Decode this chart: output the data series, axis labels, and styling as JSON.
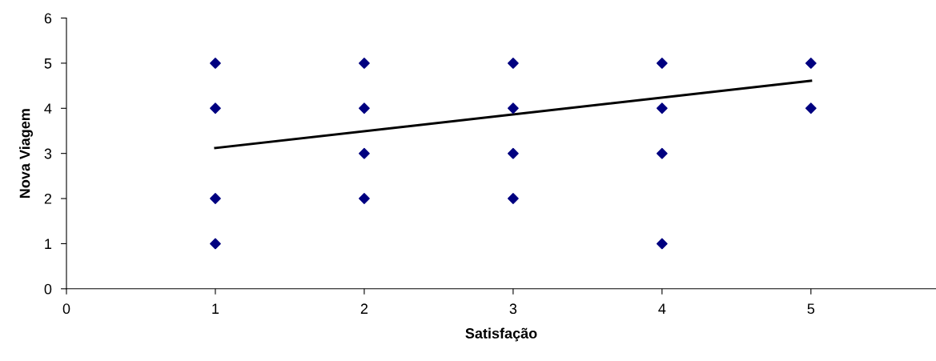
{
  "chart_data": {
    "type": "scatter",
    "xlabel": "Satisfação",
    "ylabel": "Nova Viagem",
    "xlim": [
      0,
      5.84
    ],
    "xticks": [
      0,
      1,
      2,
      3,
      4,
      5
    ],
    "ylim": [
      0,
      6
    ],
    "yticks": [
      0,
      1,
      2,
      3,
      4,
      5,
      6
    ],
    "grid": false,
    "legend": false,
    "marker": "diamond",
    "series": [
      {
        "color": "#000080",
        "x": [
          1,
          1,
          1,
          1,
          2,
          2,
          2,
          2,
          3,
          3,
          3,
          3,
          4,
          4,
          4,
          4,
          5,
          5
        ],
        "values": [
          5,
          4,
          2,
          1,
          5,
          4,
          3,
          2,
          5,
          4,
          3,
          2,
          5,
          4,
          3,
          1,
          5,
          4
        ]
      },
      {
        "type": "line",
        "color": "#000000",
        "marker": "none",
        "line_style": "solid",
        "x": [
          1,
          5
        ],
        "values": [
          3.12,
          4.61
        ]
      }
    ]
  }
}
